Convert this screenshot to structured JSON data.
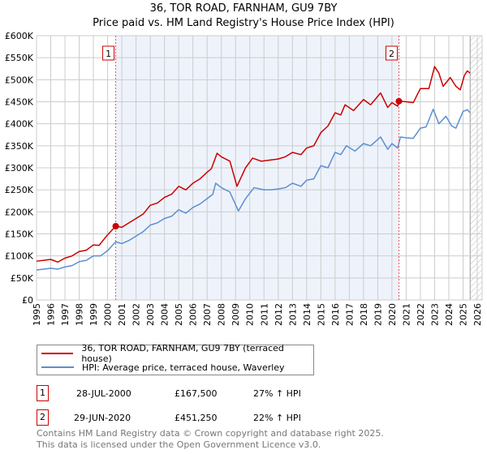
{
  "title": "36, TOR ROAD, FARNHAM, GU9 7BY",
  "subtitle": "Price paid vs. HM Land Registry's House Price Index (HPI)",
  "colors": {
    "property": "#cc0000",
    "hpi": "#5b8fd0",
    "shade": "#eef3fb"
  },
  "chart_data": {
    "type": "line",
    "title": "36, TOR ROAD, FARNHAM, GU9 7BY",
    "xlim": [
      1995,
      2026
    ],
    "ylim": [
      0,
      600000
    ],
    "x_ticks": [
      "1995",
      "1996",
      "1997",
      "1998",
      "1999",
      "2000",
      "2001",
      "2002",
      "2003",
      "2004",
      "2005",
      "2006",
      "2007",
      "2008",
      "2009",
      "2010",
      "2011",
      "2012",
      "2013",
      "2014",
      "2015",
      "2016",
      "2017",
      "2018",
      "2019",
      "2020",
      "2021",
      "2022",
      "2023",
      "2024",
      "2025",
      "2026"
    ],
    "y_ticks": [
      {
        "v": 0,
        "label": "£0"
      },
      {
        "v": 50000,
        "label": "£50K"
      },
      {
        "v": 100000,
        "label": "£100K"
      },
      {
        "v": 150000,
        "label": "£150K"
      },
      {
        "v": 200000,
        "label": "£200K"
      },
      {
        "v": 250000,
        "label": "£250K"
      },
      {
        "v": 300000,
        "label": "£300K"
      },
      {
        "v": 350000,
        "label": "£350K"
      },
      {
        "v": 400000,
        "label": "£400K"
      },
      {
        "v": 450000,
        "label": "£450K"
      },
      {
        "v": 500000,
        "label": "£500K"
      },
      {
        "v": 550000,
        "label": "£550K"
      },
      {
        "v": 600000,
        "label": "£600K"
      }
    ],
    "grid": true,
    "shaded_period": [
      2000.57,
      2020.49
    ],
    "forecast_hatch_from": 2025.5,
    "series": [
      {
        "name": "36, TOR ROAD, FARNHAM, GU9 7BY (terraced house)",
        "points": [
          [
            1995,
            88
          ],
          [
            1995.5,
            90
          ],
          [
            1996,
            92
          ],
          [
            1996.5,
            86
          ],
          [
            1997,
            95
          ],
          [
            1997.5,
            100
          ],
          [
            1998,
            110
          ],
          [
            1998.5,
            113
          ],
          [
            1999,
            125
          ],
          [
            1999.4,
            124
          ],
          [
            2000,
            148
          ],
          [
            2000.57,
            167.5
          ],
          [
            2001,
            165
          ],
          [
            2001.5,
            175
          ],
          [
            2002,
            185
          ],
          [
            2002.5,
            195
          ],
          [
            2003,
            215
          ],
          [
            2003.5,
            220
          ],
          [
            2004,
            233
          ],
          [
            2004.5,
            240
          ],
          [
            2005,
            258
          ],
          [
            2005.5,
            250
          ],
          [
            2006,
            265
          ],
          [
            2006.5,
            275
          ],
          [
            2007,
            290
          ],
          [
            2007.3,
            298
          ],
          [
            2007.7,
            333
          ],
          [
            2008,
            325
          ],
          [
            2008.6,
            315
          ],
          [
            2009.1,
            258
          ],
          [
            2009.7,
            300
          ],
          [
            2010.2,
            322
          ],
          [
            2010.8,
            315
          ],
          [
            2011.5,
            318
          ],
          [
            2012,
            320
          ],
          [
            2012.5,
            325
          ],
          [
            2013,
            335
          ],
          [
            2013.6,
            330
          ],
          [
            2014,
            345
          ],
          [
            2014.5,
            350
          ],
          [
            2015,
            380
          ],
          [
            2015.5,
            395
          ],
          [
            2016,
            425
          ],
          [
            2016.4,
            420
          ],
          [
            2016.7,
            443
          ],
          [
            2017.3,
            430
          ],
          [
            2018,
            455
          ],
          [
            2018.5,
            443
          ],
          [
            2019.2,
            470
          ],
          [
            2019.7,
            437
          ],
          [
            2020,
            448
          ],
          [
            2020.4,
            440
          ],
          [
            2020.5,
            451.25
          ],
          [
            2021,
            450
          ],
          [
            2021.5,
            448
          ],
          [
            2022,
            480
          ],
          [
            2022.6,
            480
          ],
          [
            2023,
            530
          ],
          [
            2023.3,
            515
          ],
          [
            2023.6,
            485
          ],
          [
            2024.1,
            505
          ],
          [
            2024.5,
            485
          ],
          [
            2024.8,
            477
          ],
          [
            2025.1,
            510
          ],
          [
            2025.3,
            520
          ],
          [
            2025.5,
            515
          ]
        ]
      },
      {
        "name": "HPI: Average price, terraced house, Waverley",
        "points": [
          [
            1995,
            68
          ],
          [
            1995.5,
            70
          ],
          [
            1996,
            72
          ],
          [
            1996.5,
            70
          ],
          [
            1997,
            75
          ],
          [
            1997.5,
            78
          ],
          [
            1998,
            87
          ],
          [
            1998.5,
            90
          ],
          [
            1999,
            100
          ],
          [
            1999.5,
            100
          ],
          [
            2000,
            112
          ],
          [
            2000.57,
            132
          ],
          [
            2001,
            128
          ],
          [
            2001.5,
            135
          ],
          [
            2002,
            145
          ],
          [
            2002.5,
            155
          ],
          [
            2003,
            170
          ],
          [
            2003.5,
            175
          ],
          [
            2004,
            185
          ],
          [
            2004.5,
            190
          ],
          [
            2005,
            205
          ],
          [
            2005.5,
            197
          ],
          [
            2006,
            210
          ],
          [
            2006.5,
            218
          ],
          [
            2007,
            230
          ],
          [
            2007.4,
            240
          ],
          [
            2007.6,
            265
          ],
          [
            2008,
            255
          ],
          [
            2008.6,
            245
          ],
          [
            2009.2,
            202
          ],
          [
            2009.7,
            230
          ],
          [
            2010.3,
            255
          ],
          [
            2011,
            250
          ],
          [
            2011.5,
            250
          ],
          [
            2012,
            252
          ],
          [
            2012.5,
            255
          ],
          [
            2013,
            265
          ],
          [
            2013.6,
            258
          ],
          [
            2014,
            272
          ],
          [
            2014.5,
            275
          ],
          [
            2015,
            305
          ],
          [
            2015.5,
            300
          ],
          [
            2016,
            335
          ],
          [
            2016.4,
            330
          ],
          [
            2016.8,
            350
          ],
          [
            2017.4,
            338
          ],
          [
            2018,
            355
          ],
          [
            2018.5,
            350
          ],
          [
            2019.2,
            370
          ],
          [
            2019.7,
            342
          ],
          [
            2020,
            355
          ],
          [
            2020.4,
            345
          ],
          [
            2020.6,
            370
          ],
          [
            2021,
            368
          ],
          [
            2021.5,
            367
          ],
          [
            2022,
            390
          ],
          [
            2022.4,
            393
          ],
          [
            2022.9,
            433
          ],
          [
            2023.3,
            400
          ],
          [
            2023.8,
            417
          ],
          [
            2024.2,
            395
          ],
          [
            2024.5,
            390
          ],
          [
            2025,
            428
          ],
          [
            2025.3,
            432
          ],
          [
            2025.5,
            425
          ]
        ]
      }
    ],
    "annotations": [
      {
        "label": "1",
        "x": 2000.57,
        "value": 167500
      },
      {
        "label": "2",
        "x": 2020.49,
        "value": 451250
      }
    ]
  },
  "legend": {
    "property": "36, TOR ROAD, FARNHAM, GU9 7BY (terraced house)",
    "hpi": "HPI: Average price, terraced house, Waverley"
  },
  "transactions": [
    {
      "num": "1",
      "date": "28-JUL-2000",
      "price": "£167,500",
      "hpi": "27% ↑ HPI"
    },
    {
      "num": "2",
      "date": "29-JUN-2020",
      "price": "£451,250",
      "hpi": "22% ↑ HPI"
    }
  ],
  "footer": {
    "line1": "Contains HM Land Registry data © Crown copyright and database right 2025.",
    "line2": "This data is licensed under the Open Government Licence v3.0."
  }
}
